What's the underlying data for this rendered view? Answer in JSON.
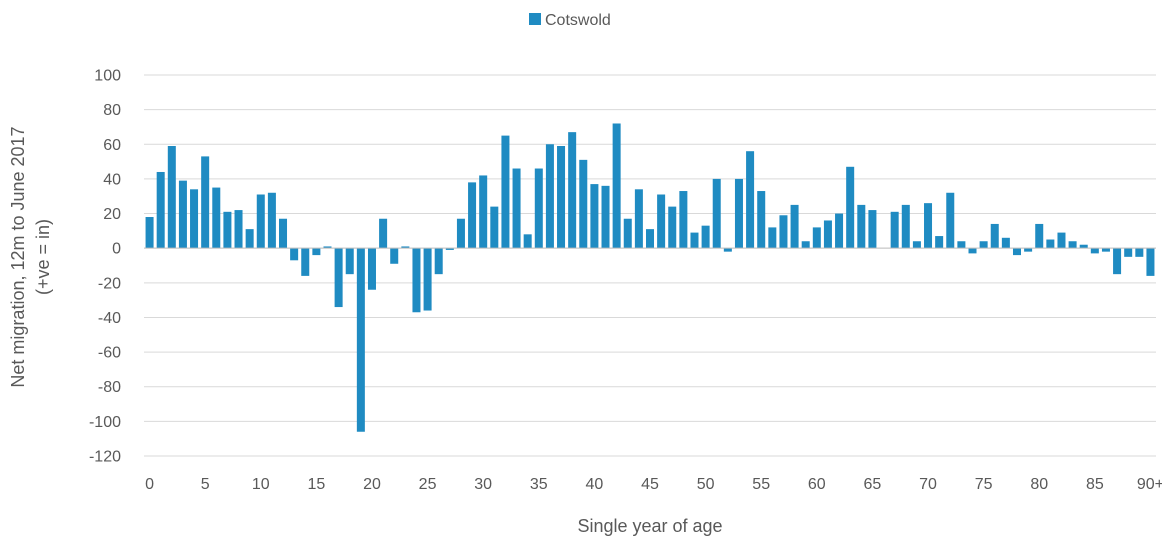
{
  "chart_data": {
    "type": "bar",
    "title": "",
    "xlabel": "Single year of age",
    "ylabel_lines": [
      "Net migration, 12m to June 2017",
      "(+ve = in)"
    ],
    "ylim": [
      -120,
      100
    ],
    "yticks": [
      100,
      80,
      60,
      40,
      20,
      0,
      -20,
      -40,
      -60,
      -80,
      -100,
      -120
    ],
    "xtick_labels": [
      "0",
      "5",
      "10",
      "15",
      "20",
      "25",
      "30",
      "35",
      "40",
      "45",
      "50",
      "55",
      "60",
      "65",
      "70",
      "75",
      "80",
      "85",
      "90+"
    ],
    "grid": true,
    "legend_position": "top",
    "colors": {
      "bar": "#1f8bc2",
      "grid": "#d9d9d9",
      "text": "#595959"
    },
    "categories": [
      "0",
      "1",
      "2",
      "3",
      "4",
      "5",
      "6",
      "7",
      "8",
      "9",
      "10",
      "11",
      "12",
      "13",
      "14",
      "15",
      "16",
      "17",
      "18",
      "19",
      "20",
      "21",
      "22",
      "23",
      "24",
      "25",
      "26",
      "27",
      "28",
      "29",
      "30",
      "31",
      "32",
      "33",
      "34",
      "35",
      "36",
      "37",
      "38",
      "39",
      "40",
      "41",
      "42",
      "43",
      "44",
      "45",
      "46",
      "47",
      "48",
      "49",
      "50",
      "51",
      "52",
      "53",
      "54",
      "55",
      "56",
      "57",
      "58",
      "59",
      "60",
      "61",
      "62",
      "63",
      "64",
      "65",
      "66",
      "67",
      "68",
      "69",
      "70",
      "71",
      "72",
      "73",
      "74",
      "75",
      "76",
      "77",
      "78",
      "79",
      "80",
      "81",
      "82",
      "83",
      "84",
      "85",
      "86",
      "87",
      "88",
      "89",
      "90+"
    ],
    "series": [
      {
        "name": "Cotswold",
        "values": [
          18,
          44,
          59,
          39,
          34,
          53,
          35,
          21,
          22,
          11,
          31,
          32,
          17,
          -7,
          -16,
          -4,
          1,
          -34,
          -15,
          -106,
          -24,
          17,
          -9,
          1,
          -37,
          -36,
          -15,
          -1,
          17,
          38,
          42,
          24,
          65,
          46,
          8,
          46,
          60,
          59,
          67,
          51,
          37,
          36,
          72,
          17,
          34,
          11,
          31,
          24,
          33,
          9,
          13,
          40,
          -2,
          40,
          56,
          33,
          12,
          19,
          25,
          4,
          12,
          16,
          20,
          47,
          25,
          22,
          0,
          21,
          25,
          4,
          26,
          7,
          32,
          4,
          -3,
          4,
          14,
          6,
          -4,
          -2,
          14,
          5,
          9,
          4,
          2,
          -3,
          -2,
          -15,
          -5,
          -5,
          -16
        ]
      }
    ]
  }
}
